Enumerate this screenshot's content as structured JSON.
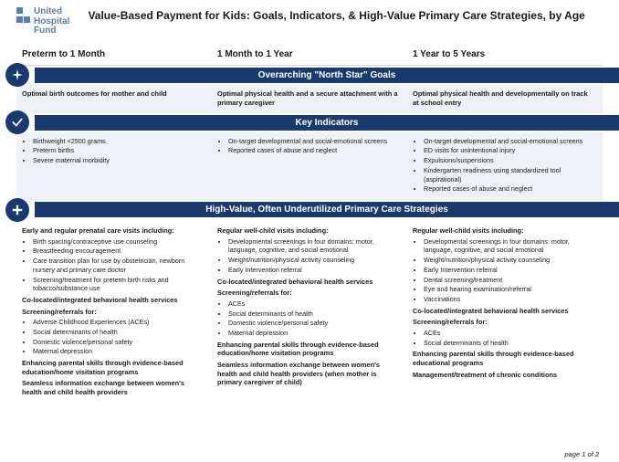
{
  "brand": {
    "line1": "United",
    "line2": "Hospital",
    "line3": "Fund"
  },
  "title": "Value-Based Payment for Kids: Goals, Indicators, & High-Value Primary Care Strategies, by Age",
  "columns": [
    "Preterm to 1 Month",
    "1 Month to 1 Year",
    "1 Year to 5 Years"
  ],
  "bands": {
    "goals": "Overarching \"North Star\" Goals",
    "indicators": "Key Indicators",
    "strategies": "High-Value, Often Underutilized Primary Care Strategies"
  },
  "goals": [
    "Optimal birth outcomes for mother and child",
    "Optimal physical health and a secure attachment with a primary caregiver",
    "Optimal physical health and developmentally on track at school entry"
  ],
  "indicators": [
    [
      "Birthweight <2500 grams",
      "Preterm births",
      "Severe maternal morbidity"
    ],
    [
      "On-target developmental and social-emotional screens",
      "Reported cases of abuse and neglect"
    ],
    [
      "On-target developmental and social-emotional screens",
      "ED visits for unintentional injury",
      "Expulsions/suspensions",
      "Kindergarten readiness using standardized tool (aspirational)",
      "Reported cases of abuse and neglect"
    ]
  ],
  "strategies": [
    {
      "blocks": [
        {
          "head": "Early and regular prenatal care visits including:",
          "items": [
            "Birth spacing/contraceptive use counseling",
            "Breastfeeding encouragement",
            "Care transition plan for use by obstetrician, newborn nursery and primary care doctor",
            "Screening/treatment for preterm birth risks and tobacco/substance use"
          ]
        },
        {
          "head": "Co-located/integrated behavioral health services",
          "items": []
        },
        {
          "head": "Screening/referrals for:",
          "items": [
            "Adverse Childhood Experiences (ACEs)",
            "Social determinants of health",
            "Domestic violence/personal safety",
            "Maternal depression"
          ]
        },
        {
          "head": "Enhancing parental skills through evidence-based education/home visitation programs",
          "items": []
        },
        {
          "head": "Seamless information exchange between women's health and child health providers",
          "items": []
        }
      ]
    },
    {
      "blocks": [
        {
          "head": "Regular well-child visits including:",
          "items": [
            "Developmental screenings in four domains: motor, language, cognitive, and social emotional",
            "Weight/nutrition/physical activity counseling",
            "Early Intervention referral"
          ]
        },
        {
          "head": "Co-located/integrated behavioral health services",
          "items": []
        },
        {
          "head": "Screening/referrals for:",
          "items": [
            "ACEs",
            "Social determinants of health",
            "Domestic violence/personal safety",
            "Maternal depression"
          ]
        },
        {
          "head": "Enhancing parental skills through evidence-based education/home visitation programs",
          "items": []
        },
        {
          "head": "Seamless information exchange between women's health and child health providers (when mother is primary caregiver of child)",
          "items": []
        }
      ]
    },
    {
      "blocks": [
        {
          "head": "Regular well-child visits including:",
          "items": [
            "Developmental screenings in four domains: motor, language, cognitive, and social emotional",
            "Weight/nutrition/physical activity counseling",
            "Early Intervention referral",
            "Dental screening/treatment",
            "Eye and hearing examination/referral",
            "Vaccinations"
          ]
        },
        {
          "head": "Co-located/integrated behavioral health services",
          "items": []
        },
        {
          "head": "Screening/referrals for:",
          "items": [
            "ACEs",
            "Social determinants of health"
          ]
        },
        {
          "head": "Enhancing parental skills through evidence-based educational programs",
          "items": []
        },
        {
          "head": "Management/treatment of chronic conditions",
          "items": []
        }
      ]
    }
  ],
  "footer": "page 1 of 2",
  "colors": {
    "brand_blue": "#5a7fa6",
    "band_blue": "#1a3a6e",
    "panel_bg": "#eef2f6"
  }
}
